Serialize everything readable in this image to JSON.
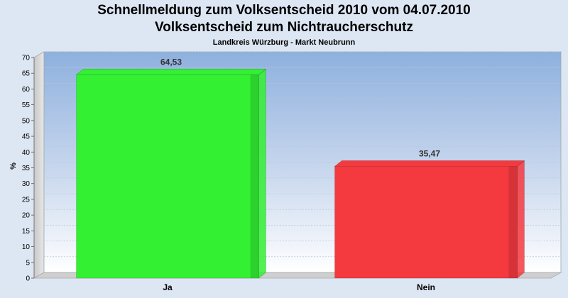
{
  "chart_data": {
    "type": "bar",
    "title": "Schnellmeldung zum Volksentscheid 2010 vom 04.07.2010",
    "subtitle": "Volksentscheid zum Nichtraucherschutz",
    "subsubtitle": "Landkreis Würzburg - Markt Neubrunn",
    "ylabel": "%",
    "xlabel": "",
    "ylim": [
      0,
      70
    ],
    "ytick_step": 5,
    "categories": [
      "Ja",
      "Nein"
    ],
    "values": [
      64.53,
      35.47
    ],
    "value_labels": [
      "64,53",
      "35,47"
    ],
    "colors": [
      "#33f033",
      "#f53a3f"
    ],
    "grid": true,
    "legend": "none"
  }
}
